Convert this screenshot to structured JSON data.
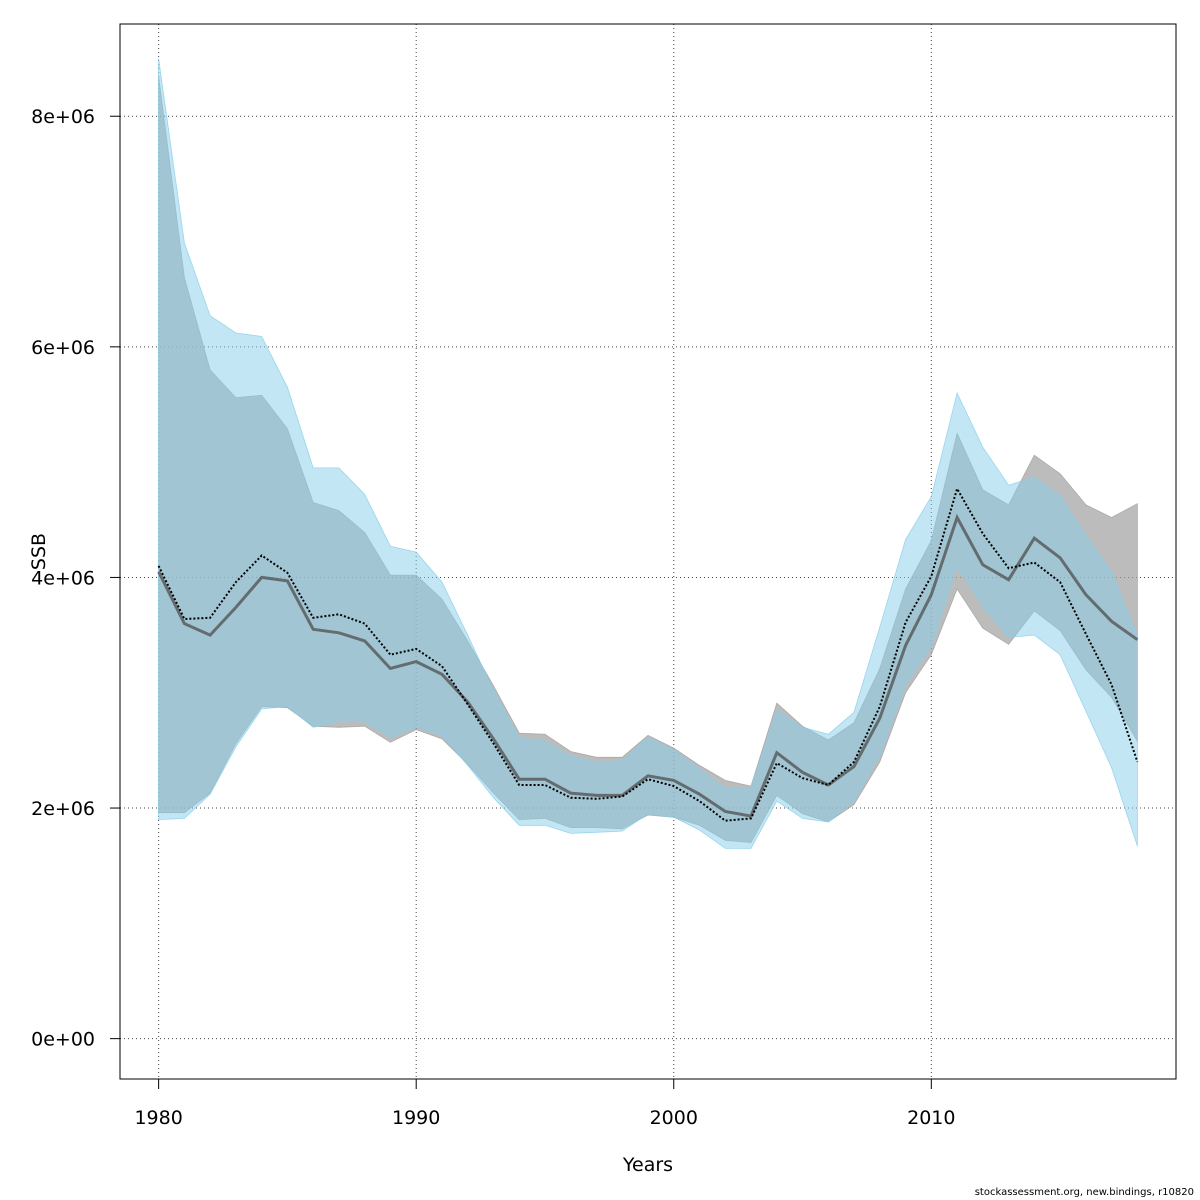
{
  "chart_data": {
    "type": "area",
    "xlabel": "Years",
    "ylabel": "SSB",
    "xlim": [
      1978.5,
      2019.5
    ],
    "ylim": [
      -350000,
      8800000
    ],
    "x_ticks": [
      1980,
      1990,
      2000,
      2010
    ],
    "x_tick_labels": [
      "1980",
      "1990",
      "2000",
      "2010"
    ],
    "y_ticks": [
      0,
      2000000,
      4000000,
      6000000,
      8000000
    ],
    "y_tick_labels": [
      "0e+00",
      "2e+06",
      "4e+06",
      "6e+06",
      "8e+06"
    ],
    "grid": true,
    "legend": "none",
    "x": [
      1980,
      1981,
      1982,
      1983,
      1984,
      1985,
      1986,
      1987,
      1988,
      1989,
      1990,
      1991,
      1992,
      1993,
      1994,
      1995,
      1996,
      1997,
      1998,
      1999,
      2000,
      2001,
      2002,
      2003,
      2004,
      2005,
      2006,
      2007,
      2008,
      2009,
      2010,
      2011,
      2012,
      2013,
      2014,
      2015,
      2016,
      2017,
      2018
    ],
    "series": [
      {
        "color": "#808080",
        "line_color": "#4d4d4d",
        "line_style": "solid",
        "band_color": "#a0a0a0",
        "estimate": [
          4050000,
          3600000,
          3500000,
          3740000,
          4000000,
          3970000,
          3550000,
          3520000,
          3450000,
          3210000,
          3270000,
          3160000,
          2920000,
          2600000,
          2250000,
          2250000,
          2130000,
          2110000,
          2110000,
          2280000,
          2240000,
          2120000,
          1970000,
          1930000,
          2480000,
          2310000,
          2200000,
          2360000,
          2780000,
          3410000,
          3850000,
          4520000,
          4110000,
          3980000,
          4340000,
          4170000,
          3850000,
          3620000,
          3460000
        ],
        "lower": [
          1960000,
          1960000,
          2130000,
          2560000,
          2880000,
          2870000,
          2710000,
          2700000,
          2710000,
          2570000,
          2680000,
          2600000,
          2380000,
          2130000,
          1900000,
          1910000,
          1830000,
          1830000,
          1820000,
          1940000,
          1920000,
          1850000,
          1720000,
          1700000,
          2110000,
          1950000,
          1880000,
          2030000,
          2400000,
          3000000,
          3330000,
          3900000,
          3560000,
          3420000,
          3710000,
          3540000,
          3200000,
          2960000,
          2580000
        ],
        "upper": [
          8350000,
          6600000,
          5800000,
          5560000,
          5580000,
          5290000,
          4650000,
          4580000,
          4390000,
          4020000,
          4020000,
          3810000,
          3450000,
          3060000,
          2650000,
          2640000,
          2490000,
          2440000,
          2440000,
          2630000,
          2520000,
          2370000,
          2240000,
          2190000,
          2910000,
          2710000,
          2590000,
          2740000,
          3210000,
          3900000,
          4320000,
          5250000,
          4760000,
          4630000,
          5060000,
          4900000,
          4630000,
          4520000,
          4640000
        ]
      },
      {
        "color": "#87ceeb",
        "line_color": "#000000",
        "line_style": "dotted",
        "band_color": "#87ceeb",
        "estimate": [
          4100000,
          3640000,
          3650000,
          3960000,
          4190000,
          4040000,
          3650000,
          3680000,
          3600000,
          3330000,
          3380000,
          3230000,
          2900000,
          2560000,
          2200000,
          2200000,
          2090000,
          2080000,
          2100000,
          2250000,
          2190000,
          2060000,
          1890000,
          1910000,
          2390000,
          2260000,
          2200000,
          2400000,
          2880000,
          3610000,
          4010000,
          4770000,
          4380000,
          4080000,
          4130000,
          3960000,
          3510000,
          3070000,
          2400000
        ],
        "lower": [
          1900000,
          1910000,
          2120000,
          2530000,
          2860000,
          2880000,
          2700000,
          2750000,
          2750000,
          2610000,
          2700000,
          2630000,
          2370000,
          2090000,
          1850000,
          1850000,
          1780000,
          1790000,
          1800000,
          1950000,
          1920000,
          1810000,
          1650000,
          1650000,
          2060000,
          1910000,
          1880000,
          2060000,
          2460000,
          3070000,
          3400000,
          4100000,
          3750000,
          3480000,
          3500000,
          3330000,
          2840000,
          2350000,
          1670000
        ],
        "upper": [
          8500000,
          6900000,
          6270000,
          6120000,
          6090000,
          5650000,
          4950000,
          4950000,
          4720000,
          4270000,
          4220000,
          3960000,
          3500000,
          3020000,
          2610000,
          2580000,
          2450000,
          2400000,
          2410000,
          2610000,
          2500000,
          2340000,
          2170000,
          2180000,
          2850000,
          2700000,
          2640000,
          2830000,
          3570000,
          4330000,
          4700000,
          5600000,
          5130000,
          4800000,
          4870000,
          4710000,
          4360000,
          4050000,
          3490000
        ]
      }
    ]
  },
  "footer": "stockassessment.org, new.bindings, r10820"
}
